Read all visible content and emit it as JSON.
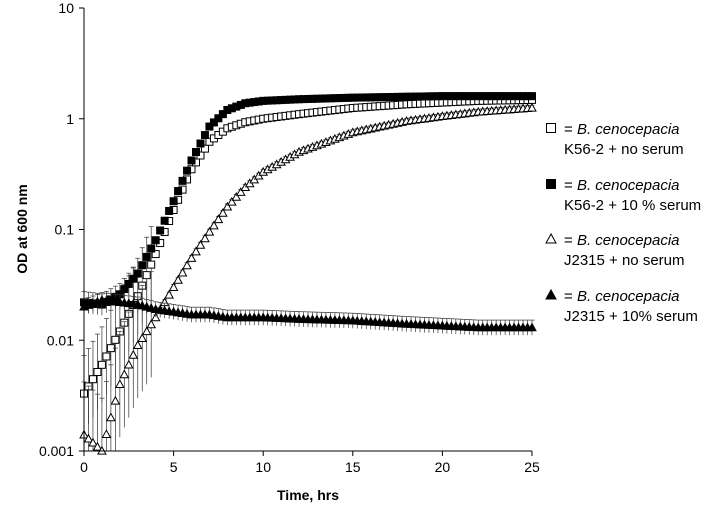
{
  "chart_data": {
    "type": "scatter",
    "title": "",
    "xlabel": "Time, hrs",
    "ylabel": "OD at 600 nm",
    "xlim": [
      0,
      25
    ],
    "ylim": [
      0.001,
      10
    ],
    "yscale": "log",
    "grid": false,
    "legend_position": "right",
    "x_ticks": [
      "0",
      "5",
      "10",
      "15",
      "20",
      "25"
    ],
    "y_ticks": [
      "0.001",
      "0.01",
      "0.1",
      "1",
      "10"
    ],
    "series": [
      {
        "marker": "open-square",
        "legend_prefix": "= ",
        "legend_species": "B. cenocepacia",
        "legend_detail": "K56-2 + no serum",
        "x": [
          0,
          1,
          2,
          3,
          4,
          5,
          6,
          7,
          8,
          9,
          10,
          12,
          15,
          18,
          20,
          22,
          25
        ],
        "y": [
          0.0033,
          0.006,
          0.012,
          0.025,
          0.06,
          0.15,
          0.35,
          0.62,
          0.82,
          0.93,
          1.0,
          1.1,
          1.25,
          1.35,
          1.4,
          1.45,
          1.48
        ]
      },
      {
        "marker": "filled-square",
        "legend_prefix": "= ",
        "legend_species": "B. cenocepacia",
        "legend_detail": "K56-2 + 10 % serum",
        "x": [
          0,
          1,
          2,
          3,
          4,
          5,
          6,
          7,
          8,
          9,
          10,
          12,
          15,
          18,
          20,
          22,
          25
        ],
        "y": [
          0.022,
          0.021,
          0.026,
          0.04,
          0.08,
          0.18,
          0.42,
          0.85,
          1.2,
          1.38,
          1.45,
          1.5,
          1.55,
          1.58,
          1.6,
          1.6,
          1.6
        ]
      },
      {
        "marker": "open-triangle",
        "legend_prefix": "= ",
        "legend_species": "B. cenocepacia",
        "legend_detail": "J2315 + no serum",
        "x": [
          0,
          1,
          2,
          3,
          4,
          5,
          6,
          7,
          8,
          9,
          10,
          12,
          15,
          18,
          20,
          22,
          25
        ],
        "y": [
          0.0014,
          0.001,
          0.004,
          0.009,
          0.016,
          0.03,
          0.055,
          0.095,
          0.16,
          0.24,
          0.33,
          0.5,
          0.75,
          0.95,
          1.05,
          1.15,
          1.25
        ]
      },
      {
        "marker": "filled-triangle",
        "legend_prefix": "= ",
        "legend_species": "B. cenocepacia",
        "legend_detail": "J2315 + 10%  serum",
        "x": [
          0,
          1,
          2,
          3,
          4,
          5,
          6,
          7,
          8,
          9,
          10,
          12,
          15,
          18,
          20,
          22,
          25
        ],
        "y": [
          0.02,
          0.023,
          0.022,
          0.021,
          0.019,
          0.018,
          0.017,
          0.017,
          0.016,
          0.016,
          0.016,
          0.0155,
          0.015,
          0.014,
          0.0135,
          0.013,
          0.013
        ]
      }
    ]
  }
}
